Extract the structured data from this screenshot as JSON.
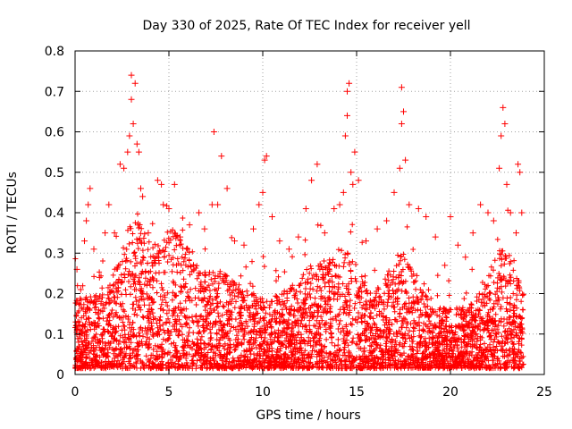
{
  "chart_data": {
    "type": "scatter",
    "title": "Day 330 of 2025, Rate Of TEC Index for receiver yell",
    "xlabel": "GPS time / hours",
    "ylabel": "ROTI / TECUs",
    "xlim": [
      0,
      25
    ],
    "ylim": [
      0,
      0.8
    ],
    "xticks": [
      0,
      5,
      10,
      15,
      20,
      25
    ],
    "yticks": [
      0,
      0.1,
      0.2,
      0.3,
      0.4,
      0.5,
      0.6,
      0.7,
      0.8
    ],
    "grid": true,
    "marker": "+",
    "color": "#ff0000",
    "series": [
      {
        "points": [
          [
            0.1,
            0.26
          ],
          [
            0.3,
            0.21
          ],
          [
            0.5,
            0.33
          ],
          [
            0.6,
            0.38
          ],
          [
            0.7,
            0.42
          ],
          [
            0.8,
            0.46
          ],
          [
            1.0,
            0.31
          ],
          [
            1.3,
            0.24
          ],
          [
            1.6,
            0.35
          ],
          [
            1.8,
            0.42
          ],
          [
            2.1,
            0.35
          ],
          [
            2.4,
            0.52
          ],
          [
            2.6,
            0.51
          ],
          [
            2.8,
            0.55
          ],
          [
            2.9,
            0.59
          ],
          [
            3.0,
            0.74
          ],
          [
            3.0,
            0.68
          ],
          [
            3.1,
            0.62
          ],
          [
            3.2,
            0.72
          ],
          [
            3.3,
            0.57
          ],
          [
            3.4,
            0.55
          ],
          [
            3.5,
            0.46
          ],
          [
            3.6,
            0.44
          ],
          [
            3.9,
            0.35
          ],
          [
            4.4,
            0.48
          ],
          [
            4.6,
            0.47
          ],
          [
            4.7,
            0.42
          ],
          [
            5.0,
            0.41
          ],
          [
            5.3,
            0.47
          ],
          [
            5.6,
            0.34
          ],
          [
            6.1,
            0.37
          ],
          [
            6.6,
            0.4
          ],
          [
            6.9,
            0.36
          ],
          [
            7.3,
            0.42
          ],
          [
            7.4,
            0.6
          ],
          [
            7.6,
            0.42
          ],
          [
            7.8,
            0.54
          ],
          [
            8.1,
            0.46
          ],
          [
            8.5,
            0.33
          ],
          [
            9.0,
            0.32
          ],
          [
            9.5,
            0.36
          ],
          [
            9.8,
            0.42
          ],
          [
            10.0,
            0.45
          ],
          [
            10.1,
            0.53
          ],
          [
            10.2,
            0.54
          ],
          [
            10.5,
            0.39
          ],
          [
            10.9,
            0.33
          ],
          [
            11.4,
            0.31
          ],
          [
            11.9,
            0.34
          ],
          [
            12.3,
            0.41
          ],
          [
            12.6,
            0.48
          ],
          [
            12.9,
            0.52
          ],
          [
            13.3,
            0.35
          ],
          [
            13.8,
            0.41
          ],
          [
            14.1,
            0.42
          ],
          [
            14.3,
            0.45
          ],
          [
            14.4,
            0.59
          ],
          [
            14.5,
            0.64
          ],
          [
            14.5,
            0.7
          ],
          [
            14.6,
            0.72
          ],
          [
            14.7,
            0.5
          ],
          [
            14.8,
            0.47
          ],
          [
            14.9,
            0.55
          ],
          [
            15.1,
            0.48
          ],
          [
            15.5,
            0.33
          ],
          [
            16.1,
            0.36
          ],
          [
            16.6,
            0.38
          ],
          [
            17.0,
            0.45
          ],
          [
            17.3,
            0.51
          ],
          [
            17.4,
            0.62
          ],
          [
            17.4,
            0.71
          ],
          [
            17.5,
            0.65
          ],
          [
            17.6,
            0.53
          ],
          [
            17.8,
            0.42
          ],
          [
            18.3,
            0.41
          ],
          [
            18.7,
            0.39
          ],
          [
            19.2,
            0.34
          ],
          [
            19.7,
            0.27
          ],
          [
            20.0,
            0.39
          ],
          [
            20.4,
            0.32
          ],
          [
            20.8,
            0.29
          ],
          [
            21.2,
            0.35
          ],
          [
            21.6,
            0.42
          ],
          [
            22.0,
            0.4
          ],
          [
            22.3,
            0.38
          ],
          [
            22.6,
            0.51
          ],
          [
            22.7,
            0.59
          ],
          [
            22.8,
            0.66
          ],
          [
            22.9,
            0.62
          ],
          [
            23.0,
            0.47
          ],
          [
            23.2,
            0.4
          ],
          [
            23.5,
            0.35
          ],
          [
            23.6,
            0.52
          ],
          [
            23.7,
            0.5
          ],
          [
            23.8,
            0.4
          ]
        ]
      }
    ]
  }
}
